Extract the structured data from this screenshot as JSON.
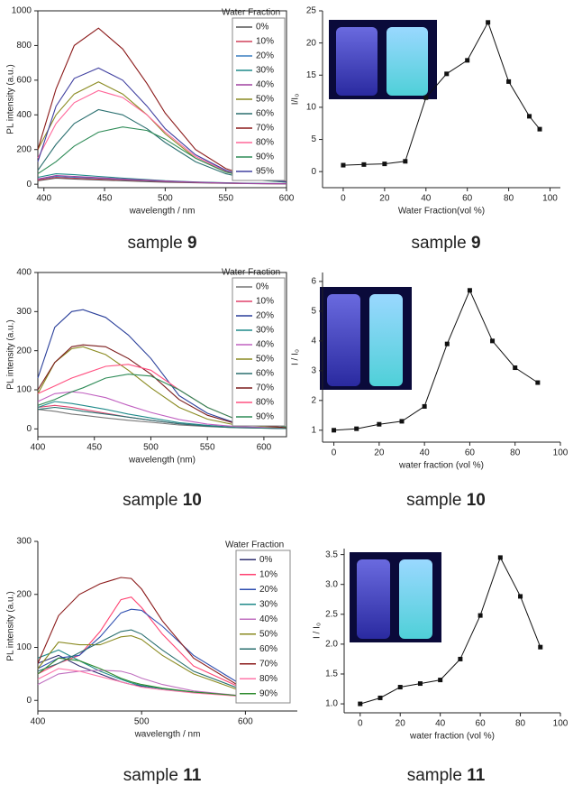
{
  "chart_data": [
    {
      "type": "line",
      "box": true,
      "xlabel": "wavelength / nm",
      "ylabel": "PL intensity (a.u.)",
      "legend_title": "Water Fraction",
      "caption": "sample",
      "caption_number": "9",
      "xlim": [
        395,
        600
      ],
      "xticks": [
        400,
        450,
        500,
        550,
        600
      ],
      "ylim": [
        -20,
        1000
      ],
      "yticks": [
        0,
        200,
        400,
        600,
        800,
        1000
      ],
      "x": [
        395,
        410,
        425,
        445,
        465,
        485,
        500,
        525,
        550,
        575,
        600
      ],
      "series": [
        {
          "name": "0%",
          "color": "#555555",
          "values": [
            20,
            35,
            30,
            25,
            20,
            15,
            12,
            8,
            5,
            3,
            2
          ]
        },
        {
          "name": "10%",
          "color": "#d0405a",
          "values": [
            25,
            40,
            35,
            30,
            25,
            20,
            15,
            10,
            6,
            4,
            2
          ]
        },
        {
          "name": "20%",
          "color": "#3a7fc0",
          "values": [
            30,
            45,
            40,
            35,
            28,
            22,
            17,
            11,
            7,
            4,
            3
          ]
        },
        {
          "name": "30%",
          "color": "#1f8a8a",
          "values": [
            40,
            60,
            55,
            45,
            35,
            27,
            20,
            13,
            8,
            5,
            3
          ]
        },
        {
          "name": "40%",
          "color": "#a040a0",
          "values": [
            30,
            50,
            45,
            38,
            30,
            23,
            18,
            12,
            7,
            4,
            3
          ]
        },
        {
          "name": "50%",
          "color": "#8a8a20",
          "values": [
            200,
            400,
            520,
            590,
            520,
            400,
            290,
            150,
            70,
            30,
            15
          ]
        },
        {
          "name": "60%",
          "color": "#2a6f6f",
          "values": [
            80,
            230,
            350,
            430,
            400,
            320,
            240,
            130,
            60,
            25,
            12
          ]
        },
        {
          "name": "70%",
          "color": "#8b1a1a",
          "values": [
            200,
            550,
            800,
            900,
            780,
            580,
            410,
            200,
            90,
            35,
            15
          ]
        },
        {
          "name": "80%",
          "color": "#ff6699",
          "values": [
            150,
            350,
            470,
            540,
            500,
            400,
            300,
            160,
            75,
            30,
            13
          ]
        },
        {
          "name": "90%",
          "color": "#2e8b57",
          "values": [
            60,
            130,
            220,
            300,
            330,
            310,
            260,
            150,
            70,
            30,
            12
          ]
        },
        {
          "name": "95%",
          "color": "#4040a0",
          "values": [
            130,
            450,
            610,
            670,
            600,
            450,
            320,
            170,
            80,
            30,
            14
          ]
        }
      ]
    },
    {
      "type": "line",
      "marker": "square",
      "xlabel": "Water Fraction(vol %)",
      "ylabel": "I/I₀",
      "caption": "sample",
      "caption_number": "9",
      "xlim": [
        -10,
        105
      ],
      "xticks": [
        0,
        20,
        40,
        60,
        80,
        100
      ],
      "ylim": [
        -2.5,
        25
      ],
      "yticks": [
        0,
        5,
        10,
        15,
        20,
        25
      ],
      "x": [
        0,
        10,
        20,
        30,
        40,
        50,
        60,
        70,
        80,
        90,
        95
      ],
      "series": [
        {
          "color": "#111111",
          "values": [
            1,
            1.1,
            1.2,
            1.6,
            11.5,
            15.2,
            17.3,
            23.2,
            14,
            8.6,
            6.6
          ]
        }
      ]
    },
    {
      "type": "line",
      "box": true,
      "xlabel": "wavelength (nm)",
      "ylabel": "PL intensity (a.u.)",
      "legend_title": "Water Fraction",
      "caption": "sample",
      "caption_number": "10",
      "xlim": [
        400,
        620
      ],
      "xticks": [
        400,
        450,
        500,
        550,
        600
      ],
      "ylim": [
        -20,
        400
      ],
      "yticks": [
        0,
        100,
        200,
        300,
        400
      ],
      "x": [
        400,
        415,
        430,
        440,
        460,
        480,
        500,
        525,
        550,
        575,
        620
      ],
      "series": [
        {
          "name": "0%",
          "color": "#777777",
          "values": [
            50,
            45,
            38,
            35,
            28,
            22,
            17,
            10,
            6,
            3,
            1
          ]
        },
        {
          "name": "10%",
          "color": "#e0406a",
          "values": [
            55,
            60,
            55,
            50,
            40,
            30,
            22,
            13,
            7,
            4,
            1
          ]
        },
        {
          "name": "20%",
          "color": "#2a3f9a",
          "values": [
            130,
            260,
            300,
            305,
            285,
            240,
            180,
            85,
            40,
            15,
            3
          ]
        },
        {
          "name": "30%",
          "color": "#1f8a8a",
          "values": [
            55,
            70,
            65,
            60,
            50,
            38,
            28,
            16,
            9,
            4,
            1
          ]
        },
        {
          "name": "40%",
          "color": "#c060c0",
          "values": [
            70,
            90,
            95,
            92,
            80,
            60,
            42,
            24,
            12,
            6,
            2
          ]
        },
        {
          "name": "50%",
          "color": "#8a8a20",
          "values": [
            90,
            170,
            205,
            210,
            190,
            150,
            105,
            55,
            25,
            10,
            3
          ]
        },
        {
          "name": "60%",
          "color": "#2a6f6f",
          "values": [
            50,
            55,
            50,
            45,
            38,
            30,
            22,
            13,
            7,
            3,
            1
          ]
        },
        {
          "name": "70%",
          "color": "#7a1a1a",
          "values": [
            100,
            170,
            210,
            215,
            210,
            180,
            140,
            75,
            35,
            14,
            3
          ]
        },
        {
          "name": "80%",
          "color": "#ff5080",
          "values": [
            90,
            110,
            130,
            140,
            160,
            165,
            150,
            100,
            55,
            25,
            5
          ]
        },
        {
          "name": "90%",
          "color": "#2e8b57",
          "values": [
            60,
            75,
            95,
            105,
            130,
            140,
            135,
            100,
            55,
            25,
            5
          ]
        }
      ]
    },
    {
      "type": "line",
      "marker": "square",
      "xlabel": "water fraction (vol %)",
      "ylabel": "I / I₀",
      "caption": "sample",
      "caption_number": "10",
      "xlim": [
        -5,
        100
      ],
      "xticks": [
        0,
        20,
        40,
        60,
        80,
        100
      ],
      "ylim": [
        0.6,
        6.3
      ],
      "yticks": [
        1,
        2,
        3,
        4,
        5,
        6
      ],
      "x": [
        0,
        10,
        20,
        30,
        40,
        50,
        60,
        70,
        80,
        90
      ],
      "series": [
        {
          "color": "#111111",
          "values": [
            1,
            1.05,
            1.2,
            1.3,
            1.8,
            3.9,
            5.7,
            4.0,
            3.1,
            2.6
          ]
        }
      ]
    },
    {
      "type": "line",
      "box": false,
      "xlabel": "wavelength / nm",
      "ylabel": "PL intensity (a.u.)",
      "legend_title": "Water Fraction",
      "caption": "sample",
      "caption_number": "11",
      "xlim": [
        400,
        650
      ],
      "xticks": [
        400,
        500,
        600
      ],
      "ylim": [
        -20,
        300
      ],
      "yticks": [
        0,
        100,
        200,
        300
      ],
      "x": [
        400,
        420,
        440,
        460,
        480,
        490,
        500,
        520,
        550,
        600,
        630
      ],
      "series": [
        {
          "name": "0%",
          "color": "#303070",
          "values": [
            70,
            85,
            65,
            50,
            35,
            30,
            27,
            22,
            16,
            8,
            3
          ]
        },
        {
          "name": "10%",
          "color": "#ff4070",
          "values": [
            50,
            70,
            85,
            130,
            190,
            195,
            175,
            125,
            65,
            20,
            5
          ]
        },
        {
          "name": "20%",
          "color": "#3050b0",
          "values": [
            60,
            80,
            85,
            120,
            165,
            172,
            170,
            140,
            85,
            25,
            5
          ]
        },
        {
          "name": "30%",
          "color": "#1f8a8a",
          "values": [
            80,
            95,
            75,
            55,
            40,
            33,
            28,
            22,
            15,
            8,
            3
          ]
        },
        {
          "name": "40%",
          "color": "#c070c0",
          "values": [
            30,
            50,
            55,
            57,
            55,
            50,
            42,
            30,
            18,
            8,
            3
          ]
        },
        {
          "name": "50%",
          "color": "#8a8a20",
          "values": [
            60,
            110,
            105,
            105,
            120,
            122,
            115,
            85,
            50,
            15,
            3
          ]
        },
        {
          "name": "60%",
          "color": "#2a6f6f",
          "values": [
            55,
            70,
            90,
            110,
            130,
            133,
            125,
            95,
            55,
            18,
            4
          ]
        },
        {
          "name": "70%",
          "color": "#8b1a1a",
          "values": [
            70,
            160,
            200,
            220,
            232,
            230,
            210,
            150,
            80,
            20,
            5
          ]
        },
        {
          "name": "80%",
          "color": "#ff77aa",
          "values": [
            40,
            60,
            55,
            45,
            35,
            30,
            25,
            20,
            14,
            7,
            3
          ]
        },
        {
          "name": "90%",
          "color": "#2e8b2e",
          "values": [
            50,
            80,
            75,
            60,
            42,
            35,
            30,
            23,
            16,
            8,
            3
          ]
        }
      ]
    },
    {
      "type": "line",
      "marker": "square",
      "xlabel": "water fraction (vol %)",
      "ylabel": "I / I₀",
      "caption": "sample",
      "caption_number": "11",
      "xlim": [
        -8,
        100
      ],
      "xticks": [
        0,
        20,
        40,
        60,
        80,
        100
      ],
      "ylim": [
        0.85,
        3.6
      ],
      "yticks": [
        {
          "value": 1,
          "label": "1.0"
        },
        1.5,
        {
          "value": 2,
          "label": "2.0"
        },
        2.5,
        {
          "value": 3,
          "label": "3.0"
        },
        3.5
      ],
      "x": [
        0,
        10,
        20,
        30,
        40,
        50,
        60,
        70,
        80,
        90
      ],
      "series": [
        {
          "color": "#111111",
          "values": [
            1.0,
            1.1,
            1.28,
            1.34,
            1.4,
            1.75,
            2.48,
            3.45,
            2.8,
            1.95
          ]
        }
      ]
    }
  ]
}
